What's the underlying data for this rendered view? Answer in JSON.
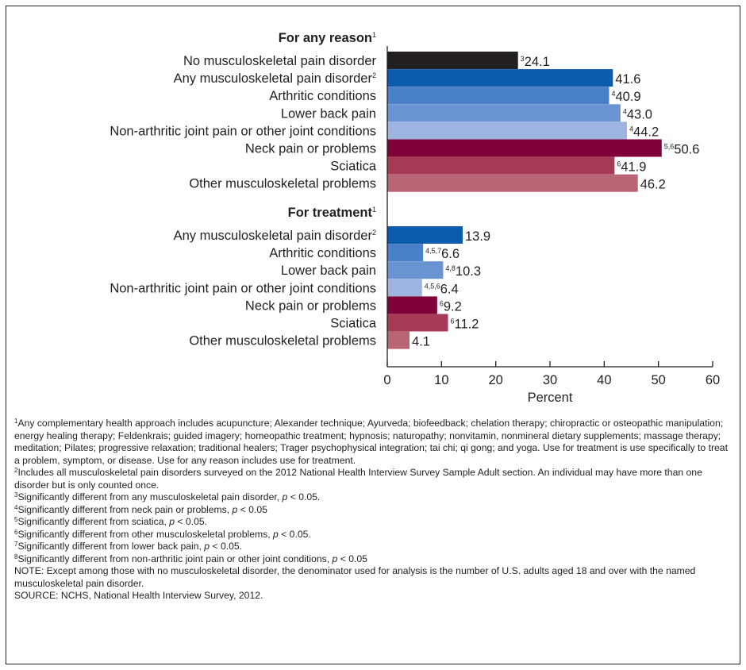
{
  "chart_data": {
    "type": "bar",
    "orientation": "horizontal",
    "xlabel": "Percent",
    "xlim": [
      0,
      60
    ],
    "xticks": [
      0,
      10,
      20,
      30,
      40,
      50,
      60
    ],
    "grid": false,
    "groups": [
      {
        "title": "For any reason",
        "title_sup": "1",
        "bars": [
          {
            "label": "No musculoskeletal pain disorder",
            "label_sup": "",
            "value": 24.1,
            "value_text": "24.1",
            "value_sup": "3",
            "color": "#231f20"
          },
          {
            "label": "Any musculoskeletal pain disorder",
            "label_sup": "2",
            "value": 41.6,
            "value_text": "41.6",
            "value_sup": "",
            "color": "#0b5cad"
          },
          {
            "label": "Arthritic conditions",
            "label_sup": "",
            "value": 40.9,
            "value_text": "40.9",
            "value_sup": "4",
            "color": "#4a7fc9"
          },
          {
            "label": "Lower back pain",
            "label_sup": "",
            "value": 43.0,
            "value_text": "43.0",
            "value_sup": "4",
            "color": "#6a93d4"
          },
          {
            "label": "Non-arthritic joint pain or other joint conditions",
            "label_sup": "",
            "value": 44.2,
            "value_text": "44.2",
            "value_sup": "4",
            "color": "#9db3e0"
          },
          {
            "label": "Neck pain or problems",
            "label_sup": "",
            "value": 50.6,
            "value_text": "50.6",
            "value_sup": "5,6",
            "color": "#800038"
          },
          {
            "label": "Sciatica",
            "label_sup": "",
            "value": 41.9,
            "value_text": "41.9",
            "value_sup": "6",
            "color": "#a63b58"
          },
          {
            "label": "Other musculoskeletal problems",
            "label_sup": "",
            "value": 46.2,
            "value_text": "46.2",
            "value_sup": "",
            "color": "#b86575"
          }
        ]
      },
      {
        "title": "For treatment",
        "title_sup": "1",
        "bars": [
          {
            "label": "Any musculoskeletal pain disorder",
            "label_sup": "2",
            "value": 13.9,
            "value_text": "13.9",
            "value_sup": "",
            "color": "#0b5cad"
          },
          {
            "label": "Arthritic conditions",
            "label_sup": "",
            "value": 6.6,
            "value_text": "6.6",
            "value_sup": "4,5,7",
            "color": "#4a7fc9"
          },
          {
            "label": "Lower back pain",
            "label_sup": "",
            "value": 10.3,
            "value_text": "10.3",
            "value_sup": "4,8",
            "color": "#6a93d4"
          },
          {
            "label": "Non-arthritic joint pain or other joint conditions",
            "label_sup": "",
            "value": 6.4,
            "value_text": "6.4",
            "value_sup": "4,5,6",
            "color": "#9db3e0"
          },
          {
            "label": "Neck pain or problems",
            "label_sup": "",
            "value": 9.2,
            "value_text": "9.2",
            "value_sup": "6",
            "color": "#800038"
          },
          {
            "label": "Sciatica",
            "label_sup": "",
            "value": 11.2,
            "value_text": "11.2",
            "value_sup": "6",
            "color": "#a63b58"
          },
          {
            "label": "Other musculoskeletal problems",
            "label_sup": "",
            "value": 4.1,
            "value_text": "4.1",
            "value_sup": "",
            "color": "#b86575"
          }
        ]
      }
    ]
  },
  "footnotes": [
    {
      "sup": "1",
      "pre": "Any complementary health approach includes acupuncture; Alexander technique; Ayurveda; biofeedback; chelation therapy; chiropractic or osteopathic manipulation; energy healing therapy; Feldenkrais; guided imagery; homeopathic treatment; hypnosis; naturopathy; nonvitamin, nonmineral dietary supplements; massage therapy; meditation; Pilates; progressive relaxation; traditional healers; Trager psychophysical integration; tai chi; qi gong; and yoga. Use for treatment is use specifically to treat a problem, symptom, or disease. Use for any reason includes use for treatment.",
      "p": "",
      "post": ""
    },
    {
      "sup": "2",
      "pre": "Includes all musculoskeletal pain disorders surveyed on the 2012 National Health Interview Survey Sample Adult section. An individual may have more than one disorder but is only counted once.",
      "p": "",
      "post": ""
    },
    {
      "sup": "3",
      "pre": "Significantly different from any musculoskeletal pain disorder, ",
      "p": "p",
      "post": " < 0.05."
    },
    {
      "sup": "4",
      "pre": "Significantly different from neck pain or problems, ",
      "p": "p",
      "post": " < 0.05"
    },
    {
      "sup": "5",
      "pre": "Significantly different from sciatica, ",
      "p": "p",
      "post": " < 0.05."
    },
    {
      "sup": "6",
      "pre": "Significantly different from other musculoskeletal problems, ",
      "p": "p",
      "post": " < 0.05."
    },
    {
      "sup": "7",
      "pre": "Significantly different from lower back pain, ",
      "p": "p",
      "post": " < 0.05."
    },
    {
      "sup": "8",
      "pre": "Significantly different from non-arthritic joint pain or other joint conditions, ",
      "p": "p",
      "post": " < 0.05"
    }
  ],
  "note": "NOTE: Except among those with no musculoskeletal disorder, the denominator used for analysis is the number of U.S. adults aged 18 and over with the named musculoskeletal pain disorder.",
  "source": "SOURCE: NCHS, National Health Interview Survey, 2012."
}
